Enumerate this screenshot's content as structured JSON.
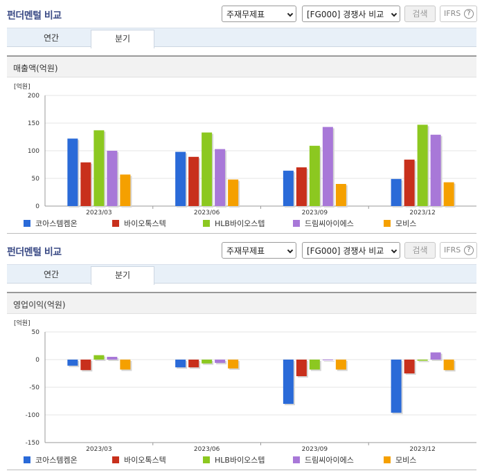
{
  "panels": [
    {
      "header": {
        "title": "펀더멘털 비교",
        "select1": "주재무제표",
        "select2": "[FG000] 경쟁사 비교",
        "search_label": "검색",
        "ifrs_label": "IFRS",
        "help_glyph": "?"
      },
      "tabs": [
        {
          "label": "연간"
        },
        {
          "label": "분기"
        }
      ],
      "chart_title": "매출액(억원)",
      "chart_data": {
        "type": "bar",
        "unit_label": "[억원]",
        "categories": [
          "2023/03",
          "2023/06",
          "2023/09",
          "2023/12"
        ],
        "ylim": [
          0,
          200
        ],
        "yticks": [
          0,
          50,
          100,
          150,
          200
        ],
        "legend_position": "bottom",
        "series": [
          {
            "name": "코아스템켐온",
            "color": "#2a6ad8",
            "values": [
              122,
              98,
              64,
              49
            ]
          },
          {
            "name": "바이오톡스텍",
            "color": "#c8301c",
            "values": [
              79,
              89,
              70,
              84
            ]
          },
          {
            "name": "HLB바이오스텝",
            "color": "#8cc820",
            "values": [
              137,
              133,
              109,
              147
            ]
          },
          {
            "name": "드림씨아이에스",
            "color": "#a878d8",
            "values": [
              100,
              103,
              143,
              129
            ]
          },
          {
            "name": "모비스",
            "color": "#f5a000",
            "values": [
              57,
              48,
              40,
              43
            ]
          }
        ]
      }
    },
    {
      "header": {
        "title": "펀더멘털 비교",
        "select1": "주재무제표",
        "select2": "[FG000] 경쟁사 비교",
        "search_label": "검색",
        "ifrs_label": "IFRS",
        "help_glyph": "?"
      },
      "tabs": [
        {
          "label": "연간"
        },
        {
          "label": "분기"
        }
      ],
      "chart_title": "영업이익(억원)",
      "chart_data": {
        "type": "bar",
        "unit_label": "[억원]",
        "categories": [
          "2023/03",
          "2023/06",
          "2023/09",
          "2023/12"
        ],
        "ylim": [
          -150,
          50
        ],
        "yticks": [
          -150,
          -100,
          -50,
          0,
          50
        ],
        "legend_position": "bottom",
        "series": [
          {
            "name": "코아스템켐온",
            "color": "#2a6ad8",
            "values": [
              -11,
              -14,
              -80,
              -96
            ]
          },
          {
            "name": "바이오톡스텍",
            "color": "#c8301c",
            "values": [
              -19,
              -14,
              -30,
              -25
            ]
          },
          {
            "name": "HLB바이오스텝",
            "color": "#8cc820",
            "values": [
              8,
              -7,
              -18,
              -2
            ]
          },
          {
            "name": "드림씨아이에스",
            "color": "#a878d8",
            "values": [
              5,
              -6,
              -1,
              13
            ]
          },
          {
            "name": "모비스",
            "color": "#f5a000",
            "values": [
              -18,
              -16,
              -18,
              -19
            ]
          }
        ]
      }
    }
  ]
}
